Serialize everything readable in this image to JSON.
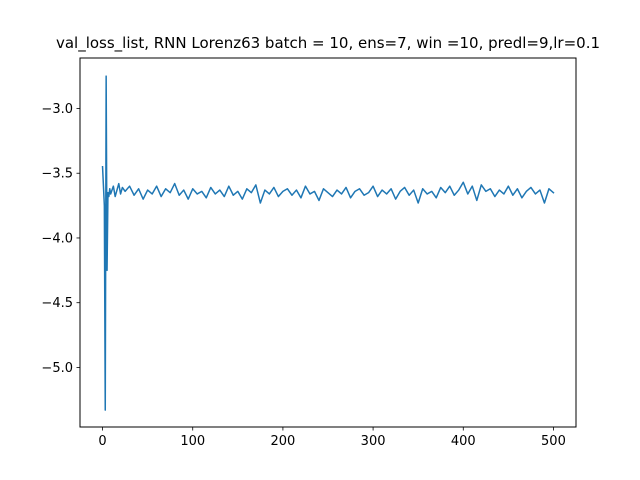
{
  "chart_data": {
    "type": "line",
    "title": "val_loss_list, RNN Lorenz63 batch = 10, ens=7, win =10, predl=9,lr=0.1",
    "xlabel": "",
    "ylabel": "",
    "xlim": [
      -25,
      525
    ],
    "ylim": [
      -5.46,
      -2.61
    ],
    "xticks": [
      0,
      100,
      200,
      300,
      400,
      500
    ],
    "xtick_labels": [
      "0",
      "100",
      "200",
      "300",
      "400",
      "500"
    ],
    "yticks": [
      -5.0,
      -4.5,
      -4.0,
      -3.5,
      -3.0
    ],
    "ytick_labels": [
      "−5.0",
      "−4.5",
      "−4.0",
      "−3.5",
      "−3.0"
    ],
    "grid": false,
    "series": [
      {
        "color": "#1f77b4",
        "x": [
          0,
          2,
          3,
          4,
          5,
          6,
          7,
          8,
          9,
          10,
          12,
          14,
          16,
          18,
          20,
          22,
          25,
          30,
          35,
          40,
          45,
          50,
          55,
          60,
          65,
          70,
          75,
          80,
          85,
          90,
          95,
          100,
          105,
          110,
          115,
          120,
          125,
          130,
          135,
          140,
          145,
          150,
          155,
          160,
          165,
          170,
          175,
          180,
          185,
          190,
          195,
          200,
          205,
          210,
          215,
          220,
          225,
          230,
          235,
          240,
          245,
          250,
          255,
          260,
          265,
          270,
          275,
          280,
          285,
          290,
          295,
          300,
          305,
          310,
          315,
          320,
          325,
          330,
          335,
          340,
          345,
          350,
          355,
          360,
          365,
          370,
          375,
          380,
          385,
          390,
          395,
          400,
          405,
          410,
          415,
          420,
          425,
          430,
          435,
          440,
          445,
          450,
          455,
          460,
          465,
          470,
          475,
          480,
          485,
          490,
          495,
          500
        ],
        "y": [
          -3.45,
          -3.75,
          -5.33,
          -2.75,
          -4.25,
          -3.65,
          -3.68,
          -3.62,
          -3.66,
          -3.64,
          -3.6,
          -3.68,
          -3.63,
          -3.58,
          -3.66,
          -3.61,
          -3.64,
          -3.6,
          -3.67,
          -3.62,
          -3.7,
          -3.63,
          -3.66,
          -3.6,
          -3.68,
          -3.62,
          -3.65,
          -3.58,
          -3.67,
          -3.63,
          -3.7,
          -3.62,
          -3.66,
          -3.64,
          -3.69,
          -3.61,
          -3.66,
          -3.63,
          -3.68,
          -3.6,
          -3.67,
          -3.64,
          -3.7,
          -3.62,
          -3.65,
          -3.59,
          -3.73,
          -3.63,
          -3.66,
          -3.61,
          -3.68,
          -3.64,
          -3.62,
          -3.67,
          -3.63,
          -3.69,
          -3.6,
          -3.66,
          -3.64,
          -3.71,
          -3.62,
          -3.65,
          -3.68,
          -3.63,
          -3.66,
          -3.61,
          -3.69,
          -3.64,
          -3.62,
          -3.67,
          -3.65,
          -3.6,
          -3.68,
          -3.63,
          -3.66,
          -3.62,
          -3.7,
          -3.64,
          -3.61,
          -3.67,
          -3.63,
          -3.73,
          -3.62,
          -3.66,
          -3.64,
          -3.69,
          -3.61,
          -3.65,
          -3.6,
          -3.67,
          -3.63,
          -3.57,
          -3.66,
          -3.6,
          -3.71,
          -3.59,
          -3.64,
          -3.62,
          -3.68,
          -3.63,
          -3.66,
          -3.6,
          -3.67,
          -3.62,
          -3.69,
          -3.64,
          -3.61,
          -3.66,
          -3.63,
          -3.73,
          -3.62,
          -3.65
        ]
      }
    ]
  }
}
